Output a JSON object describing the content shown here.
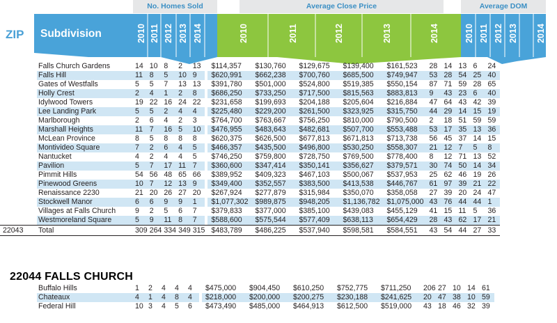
{
  "headers": {
    "homes_sold": "No. Homes Sold",
    "avg_close_price": "Average Close Price",
    "avg_dom": "Average DOM",
    "zip": "ZIP",
    "subdivision": "Subdivision",
    "years": [
      "2010",
      "2011",
      "2012",
      "2013",
      "2014"
    ]
  },
  "colors": {
    "blue_band": "#49a3d9",
    "green_band": "#8dc63f",
    "row_shade": "#d0e6f4",
    "header_text": "#3b8fc4"
  },
  "zip_22043": {
    "rows": [
      {
        "name": "Falls Church Gardens",
        "homes": [
          "14",
          "10",
          "8",
          "2",
          "13"
        ],
        "price": [
          "$114,357",
          "$130,760",
          "$129,675",
          "$139,400",
          "$161,523"
        ],
        "dom": [
          "28",
          "14",
          "13",
          "6",
          "24"
        ]
      },
      {
        "name": "Falls Hill",
        "homes": [
          "11",
          "8",
          "5",
          "10",
          "9"
        ],
        "price": [
          "$620,991",
          "$662,238",
          "$700,760",
          "$685,500",
          "$749,947"
        ],
        "dom": [
          "53",
          "28",
          "54",
          "25",
          "40"
        ]
      },
      {
        "name": "Gates of Westfalls",
        "homes": [
          "5",
          "5",
          "7",
          "13",
          "13"
        ],
        "price": [
          "$391,780",
          "$501,000",
          "$524,800",
          "$519,385",
          "$550,154"
        ],
        "dom": [
          "87",
          "71",
          "59",
          "28",
          "65"
        ]
      },
      {
        "name": "Holly Crest",
        "homes": [
          "2",
          "4",
          "1",
          "2",
          "8"
        ],
        "price": [
          "$686,250",
          "$733,250",
          "$717,500",
          "$815,563",
          "$883,813"
        ],
        "dom": [
          "9",
          "43",
          "23",
          "6",
          "40"
        ]
      },
      {
        "name": "Idylwood Towers",
        "homes": [
          "19",
          "22",
          "16",
          "24",
          "22"
        ],
        "price": [
          "$231,658",
          "$199,693",
          "$204,188",
          "$205,604",
          "$216,884"
        ],
        "dom": [
          "47",
          "64",
          "43",
          "42",
          "39"
        ]
      },
      {
        "name": "Lee Landing Park",
        "homes": [
          "5",
          "5",
          "2",
          "4",
          "4"
        ],
        "price": [
          "$225,480",
          "$229,200",
          "$261,500",
          "$323,925",
          "$315,750"
        ],
        "dom": [
          "44",
          "29",
          "14",
          "15",
          "19"
        ]
      },
      {
        "name": "Marlborough",
        "homes": [
          "2",
          "6",
          "4",
          "2",
          "3"
        ],
        "price": [
          "$764,700",
          "$763,667",
          "$756,250",
          "$810,000",
          "$790,500"
        ],
        "dom": [
          "2",
          "18",
          "51",
          "59",
          "59"
        ]
      },
      {
        "name": "Marshall Heights",
        "homes": [
          "11",
          "7",
          "16",
          "5",
          "10"
        ],
        "price": [
          "$476,955",
          "$483,643",
          "$482,681",
          "$507,700",
          "$553,488"
        ],
        "dom": [
          "53",
          "17",
          "35",
          "13",
          "36"
        ]
      },
      {
        "name": "McLean Province",
        "homes": [
          "8",
          "5",
          "8",
          "8",
          "8"
        ],
        "price": [
          "$620,375",
          "$626,500",
          "$677,813",
          "$671,813",
          "$713,738"
        ],
        "dom": [
          "56",
          "45",
          "37",
          "14",
          "15"
        ]
      },
      {
        "name": "Montivideo Square",
        "homes": [
          "7",
          "2",
          "6",
          "4",
          "5"
        ],
        "price": [
          "$466,357",
          "$435,500",
          "$496,800",
          "$530,250",
          "$558,307"
        ],
        "dom": [
          "21",
          "12",
          "7",
          "5",
          "8"
        ]
      },
      {
        "name": "Nantucket",
        "homes": [
          "4",
          "2",
          "4",
          "4",
          "5"
        ],
        "price": [
          "$746,250",
          "$759,800",
          "$728,750",
          "$769,500",
          "$778,400"
        ],
        "dom": [
          "8",
          "12",
          "71",
          "13",
          "52"
        ]
      },
      {
        "name": "Pavilion",
        "homes": [
          "5",
          "7",
          "17",
          "11",
          "7"
        ],
        "price": [
          "$360,600",
          "$347,414",
          "$350,141",
          "$356,627",
          "$379,571"
        ],
        "dom": [
          "30",
          "74",
          "50",
          "14",
          "34"
        ]
      },
      {
        "name": "Pimmit Hills",
        "homes": [
          "54",
          "56",
          "48",
          "65",
          "66"
        ],
        "price": [
          "$389,952",
          "$409,323",
          "$467,103",
          "$500,067",
          "$537,953"
        ],
        "dom": [
          "25",
          "62",
          "46",
          "19",
          "26"
        ]
      },
      {
        "name": "Pinewood Greens",
        "homes": [
          "10",
          "7",
          "12",
          "13",
          "9"
        ],
        "price": [
          "$349,400",
          "$352,557",
          "$383,500",
          "$413,538",
          "$446,767"
        ],
        "dom": [
          "61",
          "97",
          "39",
          "21",
          "22"
        ]
      },
      {
        "name": "Renaissance 2230",
        "homes": [
          "21",
          "20",
          "26",
          "27",
          "20"
        ],
        "price": [
          "$267,924",
          "$277,879",
          "$315,984",
          "$350,070",
          "$358,058"
        ],
        "dom": [
          "27",
          "39",
          "20",
          "24",
          "47"
        ]
      },
      {
        "name": "Stockwell Manor",
        "homes": [
          "6",
          "6",
          "9",
          "9",
          "1"
        ],
        "price": [
          "$1,077,302",
          "$989,875",
          "$948,205",
          "$1,136,782",
          "$1,075,000"
        ],
        "dom": [
          "43",
          "76",
          "44",
          "44",
          "1"
        ]
      },
      {
        "name": "Villages at Falls Church",
        "homes": [
          "9",
          "2",
          "5",
          "6",
          "7"
        ],
        "price": [
          "$379,833",
          "$377,000",
          "$385,100",
          "$439,083",
          "$455,129"
        ],
        "dom": [
          "41",
          "15",
          "11",
          "5",
          "36"
        ]
      },
      {
        "name": "Westmoreland Square",
        "homes": [
          "5",
          "9",
          "11",
          "8",
          "7"
        ],
        "price": [
          "$588,600",
          "$575,544",
          "$577,409",
          "$638,113",
          "$654,429"
        ],
        "dom": [
          "28",
          "43",
          "62",
          "17",
          "21"
        ]
      }
    ],
    "total": {
      "zip": "22043",
      "label": "Total",
      "homes": [
        "309",
        "264",
        "334",
        "349",
        "315"
      ],
      "price": [
        "$483,789",
        "$486,225",
        "$537,940",
        "$598,581",
        "$584,551"
      ],
      "dom": [
        "43",
        "54",
        "44",
        "27",
        "33"
      ]
    }
  },
  "section_22044": {
    "title": "22044 FALLS CHURCH",
    "rows": [
      {
        "name": "Buffalo Hills",
        "homes": [
          "1",
          "2",
          "4",
          "4",
          "4"
        ],
        "price": [
          "$475,000",
          "$904,450",
          "$610,250",
          "$752,775",
          "$711,250"
        ],
        "dom": [
          "206",
          "27",
          "10",
          "14",
          "61"
        ]
      },
      {
        "name": "Chateaux",
        "homes": [
          "4",
          "1",
          "4",
          "8",
          "4"
        ],
        "price": [
          "$218,000",
          "$200,000",
          "$200,275",
          "$230,188",
          "$241,625"
        ],
        "dom": [
          "20",
          "47",
          "38",
          "10",
          "59"
        ]
      },
      {
        "name": "Federal Hill",
        "homes": [
          "10",
          "3",
          "4",
          "5",
          "6"
        ],
        "price": [
          "$473,490",
          "$485,000",
          "$464,913",
          "$612,500",
          "$519,000"
        ],
        "dom": [
          "43",
          "18",
          "46",
          "32",
          "39"
        ]
      }
    ]
  }
}
